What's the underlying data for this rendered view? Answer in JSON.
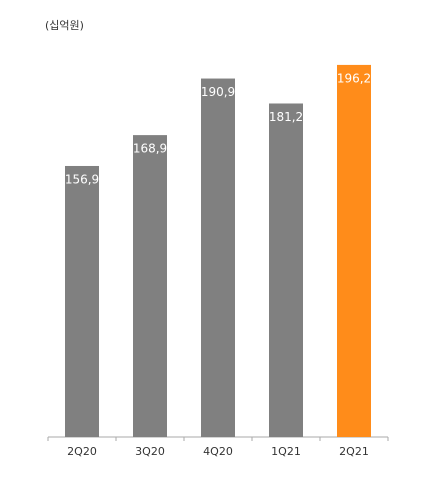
{
  "chart_data": {
    "type": "bar",
    "unit_label": "(십억원)",
    "categories": [
      "2Q20",
      "3Q20",
      "4Q20",
      "1Q21",
      "2Q21"
    ],
    "values": [
      156.9,
      168.9,
      190.9,
      181.2,
      196.2
    ],
    "value_labels": [
      "156,9",
      "168,9",
      "190,9",
      "181,2",
      "196,2"
    ],
    "colors": [
      "#808080",
      "#808080",
      "#808080",
      "#808080",
      "#ff8c1a"
    ],
    "ylim": [
      51.5,
      202
    ]
  }
}
